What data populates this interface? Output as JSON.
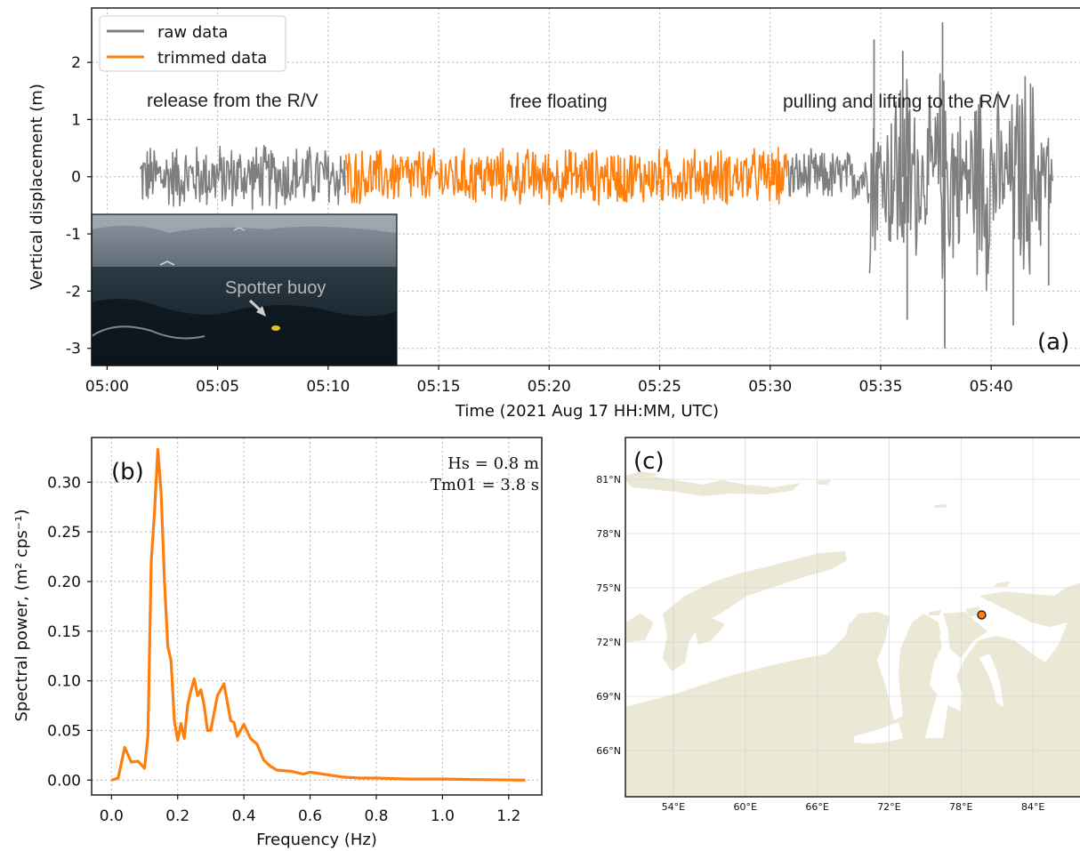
{
  "chart_data": [
    {
      "panel": "(a)",
      "type": "line",
      "xlabel": "Time (2021 Aug 17 HH:MM, UTC)",
      "ylabel": "Vertical displacement (m)",
      "x_ticks": [
        "05:00",
        "05:05",
        "05:10",
        "05:15",
        "05:20",
        "05:25",
        "05:30",
        "05:35",
        "05:40"
      ],
      "y_ticks": [
        2,
        1,
        0,
        -1,
        -2,
        -3
      ],
      "xlim_minutes": [
        -0.7,
        44.3
      ],
      "ylim": [
        -3.3,
        2.95
      ],
      "grid": true,
      "legend": {
        "placement": "top-left",
        "entries": [
          "raw data",
          "trimmed data"
        ]
      },
      "annotations": [
        "release from  the R/V",
        "free floating",
        "pulling and lifting to the R/V"
      ],
      "inset_photo_label": "Spotter buoy",
      "series": [
        {
          "name": "raw data",
          "color": "#7f7f7f",
          "start_minute": 1.5,
          "end_minute": 42.8,
          "amplitude_by_phase": [
            {
              "from": 1.5,
              "to": 10.8,
              "typical_range": [
                -0.5,
                0.5
              ],
              "extremes": [
                -0.6,
                0.7
              ]
            },
            {
              "from": 30.8,
              "to": 34.5,
              "typical_range": [
                -0.5,
                0.5
              ],
              "extremes": [
                -0.6,
                0.6
              ]
            },
            {
              "from": 34.5,
              "to": 42.8,
              "typical_range": [
                -1.5,
                1.5
              ],
              "extremes": [
                -3.0,
                2.7
              ]
            }
          ]
        },
        {
          "name": "trimmed data",
          "color": "#ff7f0e",
          "start_minute": 10.8,
          "end_minute": 30.8,
          "typical_range": [
            -0.45,
            0.45
          ],
          "extremes": [
            -0.6,
            0.7
          ]
        }
      ],
      "peaks": [
        {
          "minute": 34.7,
          "value": 2.4
        },
        {
          "minute": 36.0,
          "value": 2.2
        },
        {
          "minute": 37.8,
          "value": 2.7
        },
        {
          "minute": 37.9,
          "value": -3.0
        },
        {
          "minute": 36.2,
          "value": -2.5
        },
        {
          "minute": 41.0,
          "value": -2.6
        },
        {
          "minute": 42.6,
          "value": -1.9
        }
      ]
    },
    {
      "panel": "(b)",
      "type": "line",
      "xlabel": "Frequency (Hz)",
      "ylabel": "Spectral power, (m² cps⁻¹)",
      "x_ticks": [
        "0.0",
        "0.2",
        "0.4",
        "0.6",
        "0.8",
        "1.0",
        "1.2"
      ],
      "y_ticks": [
        "0.30",
        "0.25",
        "0.20",
        "0.15",
        "0.10",
        "0.05",
        "0.00"
      ],
      "xlim": [
        -0.06,
        1.3
      ],
      "ylim": [
        -0.015,
        0.345
      ],
      "grid": true,
      "stats": [
        "Hs = 0.8 m",
        "Tm01 = 3.8 s"
      ],
      "series": [
        {
          "name": "spectrum",
          "color": "#ff7f0e",
          "x": [
            0.0,
            0.02,
            0.04,
            0.06,
            0.08,
            0.1,
            0.11,
            0.12,
            0.13,
            0.14,
            0.15,
            0.16,
            0.17,
            0.18,
            0.19,
            0.2,
            0.21,
            0.22,
            0.23,
            0.24,
            0.25,
            0.26,
            0.27,
            0.28,
            0.29,
            0.3,
            0.32,
            0.34,
            0.36,
            0.37,
            0.38,
            0.4,
            0.42,
            0.44,
            0.46,
            0.48,
            0.5,
            0.54,
            0.58,
            0.6,
            0.62,
            0.66,
            0.7,
            0.75,
            0.8,
            0.9,
            1.0,
            1.1,
            1.25
          ],
          "y": [
            0.0,
            0.002,
            0.033,
            0.018,
            0.019,
            0.012,
            0.045,
            0.22,
            0.27,
            0.333,
            0.29,
            0.2,
            0.135,
            0.12,
            0.06,
            0.04,
            0.057,
            0.042,
            0.075,
            0.09,
            0.102,
            0.085,
            0.091,
            0.075,
            0.05,
            0.05,
            0.085,
            0.097,
            0.06,
            0.058,
            0.044,
            0.056,
            0.042,
            0.036,
            0.02,
            0.014,
            0.01,
            0.009,
            0.006,
            0.008,
            0.007,
            0.005,
            0.003,
            0.002,
            0.002,
            0.001,
            0.001,
            0.0005,
            0.0
          ]
        }
      ]
    },
    {
      "panel": "(c)",
      "type": "map",
      "lat_ticks": [
        "81°N",
        "78°N",
        "75°N",
        "72°N",
        "69°N",
        "66°N"
      ],
      "lon_ticks": [
        "54°E",
        "60°E",
        "66°E",
        "72°E",
        "78°E",
        "84°E"
      ],
      "land_color": "#ebe8d6",
      "sea_color": "#ffffff",
      "marker": {
        "lon": 79.5,
        "lat": 73.5,
        "color": "#ff7f0e"
      }
    }
  ]
}
